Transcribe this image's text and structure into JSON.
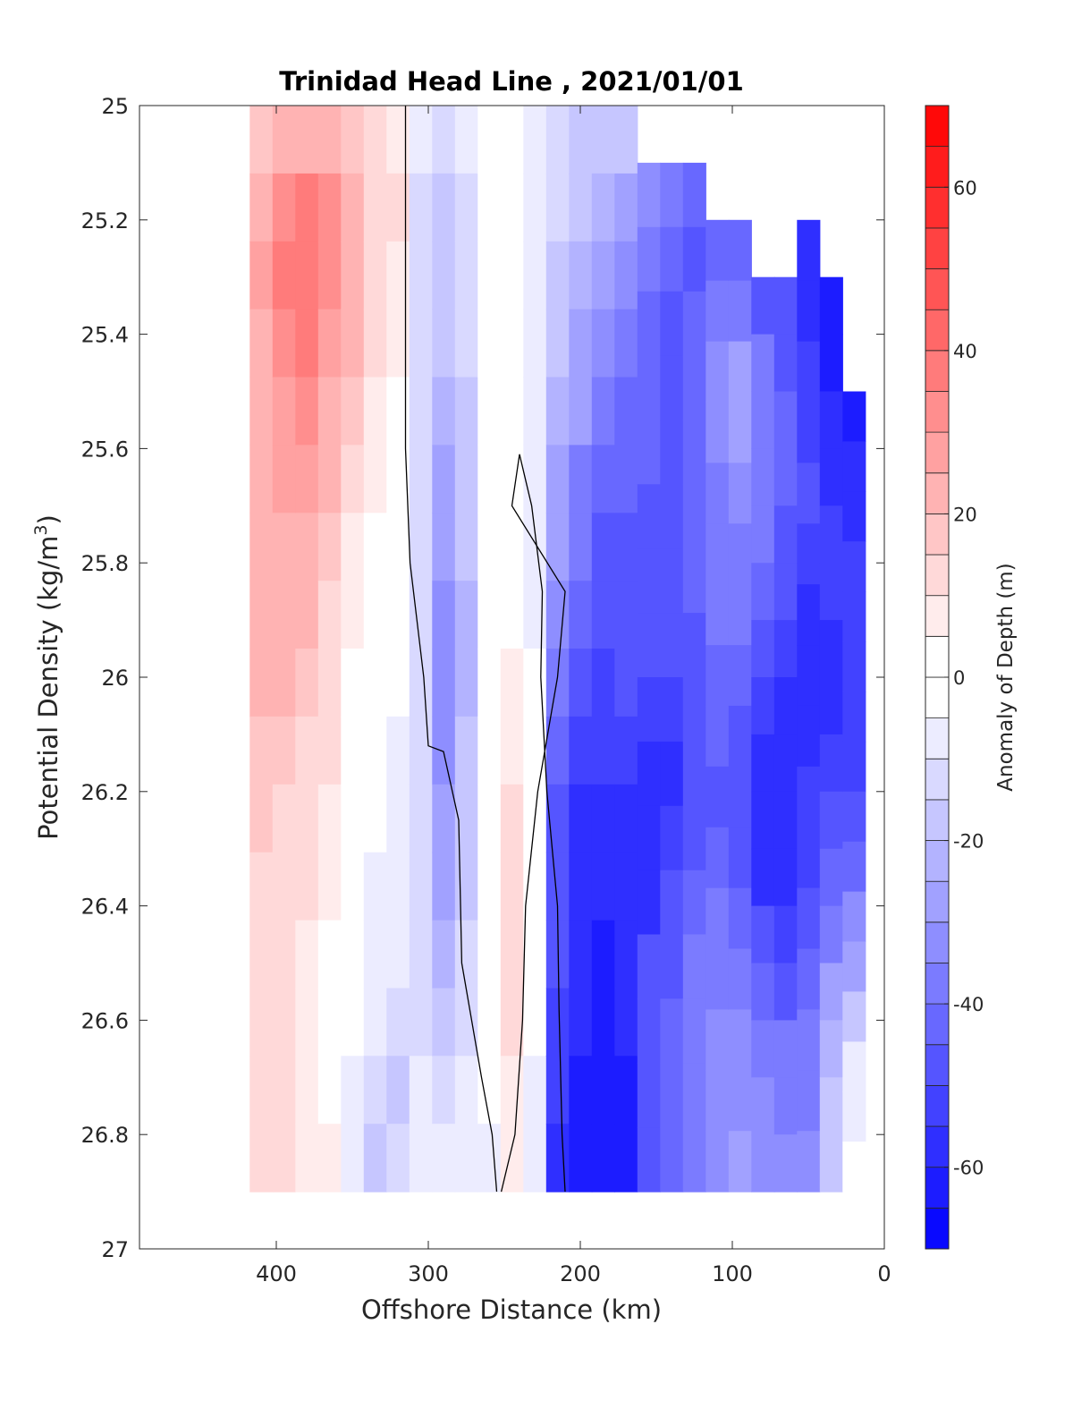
{
  "chart_data": {
    "type": "heatmap",
    "title": "Trinidad Head Line , 2021/01/01",
    "xlabel": "Offshore Distance (km)",
    "ylabel": "Potential Density (kg/m",
    "ylabel_sup": "3",
    "ylabel_close": ")",
    "xlim": [
      490,
      0
    ],
    "ylim": [
      25,
      27
    ],
    "x_reversed": true,
    "y_reversed": true,
    "x_ticks": [
      400,
      300,
      200,
      100,
      0
    ],
    "y_ticks": [
      "25",
      "25.2",
      "25.4",
      "25.6",
      "25.8",
      "26",
      "26.2",
      "26.4",
      "26.6",
      "26.8",
      "27"
    ],
    "colorbar": {
      "label": "Anomaly of Depth (m)",
      "range": [
        -70,
        70
      ],
      "step": 5,
      "ticks": [
        60,
        40,
        20,
        0,
        -20,
        -40,
        -60
      ]
    },
    "zero_contour_color": "#000000",
    "color_low": "#0000ff",
    "color_high": "#ff0000",
    "columns": [
      {
        "x": 410,
        "top": 25.0,
        "values": [
          18,
          24,
          26,
          24,
          22,
          22,
          22,
          24,
          24,
          16,
          16,
          14,
          13,
          12,
          10,
          10
        ]
      },
      {
        "x": 395,
        "top": 25.0,
        "values": [
          22,
          32,
          36,
          34,
          28,
          26,
          24,
          24,
          22,
          16,
          14,
          14,
          12,
          10,
          10,
          10
        ]
      },
      {
        "x": 380,
        "top": 25.0,
        "values": [
          24,
          36,
          38,
          36,
          30,
          26,
          22,
          20,
          18,
          14,
          12,
          10,
          8,
          6,
          5,
          6
        ]
      },
      {
        "x": 365,
        "top": 25.0,
        "values": [
          22,
          30,
          32,
          28,
          24,
          20,
          16,
          14,
          12,
          10,
          8,
          6,
          4,
          2,
          4,
          6
        ]
      },
      {
        "x": 350,
        "top": 25.0,
        "values": [
          18,
          22,
          22,
          20,
          16,
          12,
          8,
          6,
          4,
          2,
          0,
          -2,
          -4,
          -5,
          -8,
          -10
        ]
      },
      {
        "x": 335,
        "top": 25.0,
        "values": [
          14,
          14,
          14,
          12,
          8,
          6,
          2,
          1,
          0,
          -3,
          -5,
          -6,
          -8,
          -10,
          -14,
          -16
        ]
      },
      {
        "x": 320,
        "top": 25.0,
        "values": [
          8,
          10,
          8,
          6,
          4,
          2,
          0,
          -2,
          -4,
          -6,
          -8,
          -8,
          -10,
          -14,
          -16,
          -14
        ]
      },
      {
        "x": 305,
        "top": 25.0,
        "values": [
          -8,
          -14,
          -14,
          -12,
          -12,
          -12,
          -12,
          -12,
          -14,
          -14,
          -14,
          -14,
          -12,
          -12,
          -10,
          -8
        ]
      },
      {
        "x": 290,
        "top": 25.0,
        "values": [
          -12,
          -16,
          -18,
          -20,
          -22,
          -26,
          -30,
          -34,
          -34,
          -32,
          -30,
          -28,
          -24,
          -16,
          -12,
          -8
        ]
      },
      {
        "x": 275,
        "top": 25.0,
        "values": [
          -8,
          -12,
          -14,
          -14,
          -16,
          -18,
          -20,
          -22,
          -22,
          -20,
          -18,
          -16,
          -14,
          -12,
          -8,
          -6
        ]
      },
      {
        "x": 260,
        "top": 25.0,
        "values": [
          -2,
          -4,
          -4,
          -4,
          -4,
          -2,
          -2,
          0,
          0,
          0,
          0,
          0,
          -1,
          -2,
          -4,
          -6
        ]
      },
      {
        "x": 245,
        "top": 25.0,
        "values": [
          2,
          1,
          1,
          1,
          0,
          1,
          2,
          4,
          6,
          8,
          10,
          12,
          14,
          12,
          8,
          6
        ]
      },
      {
        "x": 230,
        "top": 25.0,
        "values": [
          -6,
          -6,
          -6,
          -8,
          -8,
          -8,
          -8,
          -6,
          -4,
          -2,
          0,
          2,
          2,
          -2,
          -6,
          -10
        ]
      },
      {
        "x": 215,
        "top": 25.0,
        "values": [
          -12,
          -14,
          -16,
          -18,
          -22,
          -26,
          -30,
          -34,
          -38,
          -42,
          -46,
          -48,
          -50,
          -52,
          -54,
          -56
        ]
      },
      {
        "x": 200,
        "top": 25.0,
        "values": [
          -16,
          -18,
          -22,
          -26,
          -30,
          -36,
          -40,
          -44,
          -48,
          -52,
          -56,
          -58,
          -60,
          -60,
          -62,
          -62
        ]
      },
      {
        "x": 185,
        "top": 25.0,
        "values": [
          -18,
          -22,
          -28,
          -32,
          -36,
          -42,
          -46,
          -50,
          -52,
          -54,
          -58,
          -60,
          -62,
          -62,
          -64,
          -64
        ]
      },
      {
        "x": 170,
        "top": 25.0,
        "values": [
          -20,
          -28,
          -34,
          -40,
          -42,
          -44,
          -46,
          -48,
          -50,
          -54,
          -58,
          -60,
          -60,
          -58,
          -62,
          -64
        ]
      },
      {
        "x": 155,
        "top": 25.1,
        "values": [
          -32,
          -36,
          -42,
          -44,
          -44,
          -46,
          -48,
          -50,
          -54,
          -58,
          -60,
          -56,
          -50,
          -48,
          -48,
          -48
        ]
      },
      {
        "x": 140,
        "top": 25.1,
        "values": [
          -38,
          -44,
          -46,
          -46,
          -46,
          -46,
          -48,
          -48,
          -52,
          -56,
          -54,
          -50,
          -46,
          -44,
          -44,
          -44
        ]
      },
      {
        "x": 125,
        "top": 25.1,
        "values": [
          -42,
          -46,
          -44,
          -42,
          -42,
          -42,
          -44,
          -46,
          -48,
          -50,
          -48,
          -44,
          -40,
          -36,
          -36,
          -36
        ]
      },
      {
        "x": 110,
        "top": 25.2,
        "values": [
          -44,
          -40,
          -34,
          -34,
          -36,
          -38,
          -40,
          -42,
          -44,
          -46,
          -44,
          -40,
          -36,
          -34,
          -34,
          -32
        ]
      },
      {
        "x": 95,
        "top": 25.2,
        "values": [
          -44,
          -36,
          -30,
          -30,
          -32,
          -36,
          -40,
          -44,
          -48,
          -50,
          -48,
          -44,
          -38,
          -34,
          -32,
          -30
        ]
      },
      {
        "x": 80,
        "top": 25.3,
        "values": [
          -46,
          -40,
          -36,
          -36,
          -38,
          -42,
          -46,
          -52,
          -56,
          -58,
          -56,
          -50,
          -44,
          -38,
          -34,
          -32
        ]
      },
      {
        "x": 65,
        "top": 25.3,
        "values": [
          -50,
          -46,
          -44,
          -44,
          -46,
          -50,
          -54,
          -58,
          -60,
          -60,
          -58,
          -52,
          -46,
          -40,
          -36,
          -34
        ]
      },
      {
        "x": 50,
        "top": 25.2,
        "values": [
          -58,
          -56,
          -54,
          -52,
          -50,
          -52,
          -56,
          -58,
          -56,
          -54,
          -52,
          -48,
          -42,
          -38,
          -36,
          -34
        ]
      },
      {
        "x": 35,
        "top": 25.3,
        "values": [
          -64,
          -62,
          -58,
          -56,
          -54,
          -54,
          -56,
          -58,
          -54,
          -50,
          -44,
          -38,
          -30,
          -24,
          -20,
          -16
        ]
      },
      {
        "x": 20,
        "top": 25.5,
        "values": [
          -64,
          -60,
          -56,
          -54,
          -52,
          -52,
          -52,
          -52,
          -48,
          -42,
          -34,
          -26,
          -18,
          -10,
          -6,
          -4
        ]
      }
    ],
    "zero_contours": [
      [
        [
          315,
          25.0
        ],
        [
          315,
          25.6
        ],
        [
          312,
          25.8
        ],
        [
          303,
          26.0
        ],
        [
          300,
          26.12
        ],
        [
          290,
          26.13
        ],
        [
          280,
          26.25
        ],
        [
          278,
          26.5
        ],
        [
          265,
          26.7
        ],
        [
          258,
          26.8
        ],
        [
          255,
          26.9
        ]
      ],
      [
        [
          252,
          26.9
        ],
        [
          243,
          26.8
        ],
        [
          238,
          26.6
        ],
        [
          236,
          26.4
        ],
        [
          228,
          26.2
        ],
        [
          215,
          26.0
        ],
        [
          210,
          25.85
        ],
        [
          245,
          25.7
        ],
        [
          240,
          25.61
        ],
        [
          232,
          25.7
        ],
        [
          225,
          25.85
        ],
        [
          226,
          26.0
        ],
        [
          222,
          26.2
        ],
        [
          215,
          26.4
        ],
        [
          214,
          26.58
        ],
        [
          212,
          26.8
        ],
        [
          210,
          26.9
        ]
      ]
    ]
  }
}
